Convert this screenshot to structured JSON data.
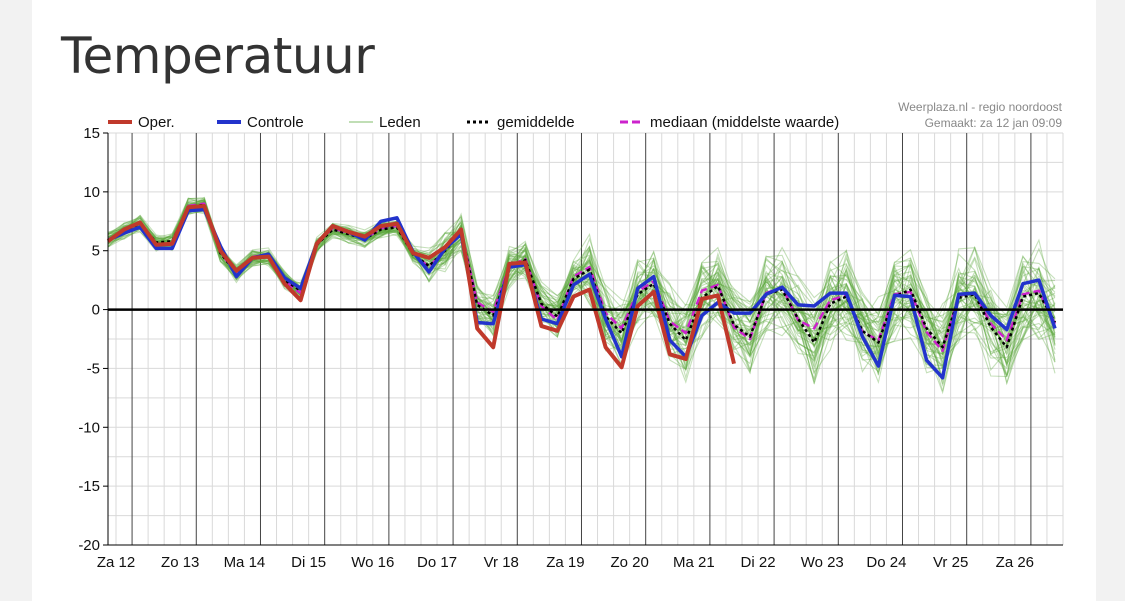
{
  "page": {
    "title": "Temperatuur"
  },
  "chart_data": {
    "type": "line",
    "title": "",
    "source": "Weerplaza.nl - regio noordoost",
    "made": "Gemaakt: za 12 jan 09:09",
    "xlabel": "",
    "ylabel": "",
    "ylim": [
      -20,
      15
    ],
    "yticks": [
      15,
      10,
      5,
      0,
      -5,
      -10,
      -15,
      -20
    ],
    "ytick_labels": [
      "15",
      "10",
      "5",
      "0",
      "-5",
      "-10",
      "-15",
      "-20"
    ],
    "x_day_labels": [
      "Za 12",
      "Zo 13",
      "Ma 14",
      "Di 15",
      "Wo 16",
      "Do 17",
      "Vr 18",
      "Za 19",
      "Zo 20",
      "Ma 21",
      "Di 22",
      "Wo 23",
      "Do 24",
      "Vr 25",
      "Za 26"
    ],
    "steps_per_day": 4,
    "grid": true,
    "legend_position": "top",
    "legend": [
      "Oper.",
      "Controle",
      "Leden",
      "gemiddelde",
      "mediaan (middelste waarde)"
    ],
    "colors": {
      "oper": "#c0392b",
      "controle": "#2233cc",
      "leden": "#58a63a",
      "gemiddelde": "#000000",
      "mediaan": "#cc22cc",
      "zero_line": "#000000"
    },
    "series": [
      {
        "name": "Oper.",
        "values": [
          5.8,
          6.8,
          7.4,
          5.5,
          5.6,
          8.7,
          8.8,
          5.0,
          3.3,
          4.4,
          4.5,
          2.2,
          0.8,
          5.6,
          7.1,
          6.6,
          6.2,
          7.1,
          7.3,
          4.8,
          4.4,
          5.3,
          6.8,
          -1.6,
          -3.2,
          3.9,
          4.0,
          -1.4,
          -1.8,
          1.1,
          1.7,
          -3.2,
          -4.9,
          0.3,
          1.5,
          -3.8,
          -4.2,
          0.9,
          1.2,
          -4.6
        ]
      },
      {
        "name": "Controle",
        "values": [
          5.9,
          6.5,
          7.0,
          5.2,
          5.2,
          8.4,
          8.5,
          5.4,
          2.8,
          4.4,
          4.7,
          2.7,
          1.8,
          5.6,
          7.1,
          6.6,
          5.9,
          7.5,
          7.8,
          4.9,
          3.2,
          5.2,
          6.4,
          -1.1,
          -1.2,
          3.6,
          3.8,
          -0.8,
          -1.2,
          2.1,
          3.0,
          -0.8,
          -4.0,
          1.8,
          2.8,
          -2.6,
          -4.0,
          -0.5,
          0.6,
          -0.3,
          -0.3,
          1.3,
          1.9,
          0.4,
          0.3,
          1.4,
          1.4,
          -2.3,
          -4.8,
          1.2,
          1.1,
          -4.3,
          -5.8,
          1.3,
          1.4,
          -0.5,
          -1.7,
          2.2,
          2.5,
          -1.6
        ]
      },
      {
        "name": "gemiddelde",
        "values": [
          5.9,
          6.7,
          7.3,
          5.7,
          5.8,
          8.7,
          8.9,
          4.8,
          3.1,
          4.4,
          4.5,
          2.5,
          1.6,
          5.5,
          6.8,
          6.4,
          6.0,
          6.8,
          7.0,
          4.7,
          3.7,
          5.0,
          6.6,
          0.4,
          -0.5,
          3.5,
          4.2,
          0.5,
          -0.6,
          2.6,
          3.4,
          -0.6,
          -2.0,
          1.3,
          2.2,
          -1.2,
          -2.6,
          1.0,
          2.0,
          -1.3,
          -2.3,
          1.3,
          1.7,
          -0.8,
          -2.8,
          0.5,
          1.1,
          -1.8,
          -2.8,
          1.1,
          1.7,
          -1.6,
          -3.2,
          1.0,
          1.3,
          -1.5,
          -3.2,
          1.1,
          1.4,
          -1.1
        ]
      },
      {
        "name": "mediaan (middelste waarde)",
        "values": [
          5.9,
          6.8,
          7.4,
          5.6,
          5.6,
          8.8,
          9.0,
          4.9,
          3.0,
          4.5,
          4.6,
          2.4,
          1.4,
          5.6,
          6.9,
          6.5,
          6.0,
          6.9,
          7.1,
          4.8,
          3.6,
          5.1,
          6.7,
          0.6,
          -0.2,
          3.7,
          4.3,
          0.3,
          -0.9,
          2.8,
          3.6,
          -0.3,
          -1.6,
          1.5,
          2.4,
          -1.0,
          -2.0,
          1.6,
          2.1,
          -1.5,
          -2.5,
          1.4,
          1.9,
          -0.9,
          -1.6,
          0.8,
          1.2,
          -1.9,
          -2.6,
          1.3,
          1.5,
          -1.9,
          -3.5,
          1.2,
          1.4,
          -1.2,
          -2.6,
          1.3,
          1.6,
          -1.2
        ]
      }
    ],
    "leden_members": 50
  }
}
